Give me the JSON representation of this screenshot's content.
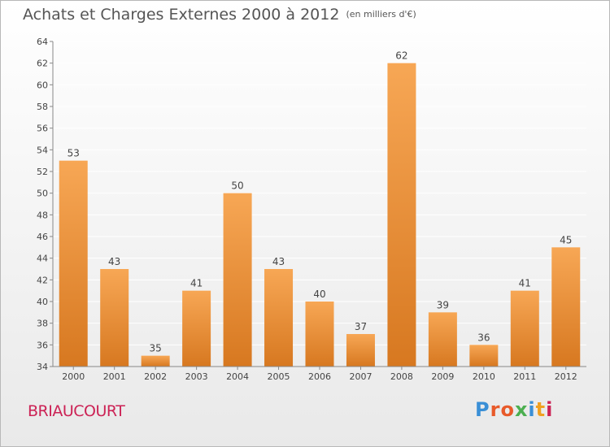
{
  "header": {
    "title": "Achats et Charges Externes 2000 à 2012",
    "subtitle": "(en milliers d'€)"
  },
  "footer": {
    "commune": "BRIAUCOURT",
    "logo_text": "Proxiti",
    "logo_colors": [
      "#3a8fd6",
      "#e85a2a",
      "#e85a2a",
      "#4caf50",
      "#3a8fd6",
      "#f0a020",
      "#cc2255"
    ]
  },
  "colors": {
    "bar_top": "#f7a755",
    "bar_bottom": "#d77820",
    "grid": "#ffffff",
    "axis": "#888888",
    "text": "#444444"
  },
  "chart_data": {
    "type": "bar",
    "title": "Achats et Charges Externes 2000 à 2012",
    "subtitle": "(en milliers d'€)",
    "categories": [
      "2000",
      "2001",
      "2002",
      "2003",
      "2004",
      "2005",
      "2006",
      "2007",
      "2008",
      "2009",
      "2010",
      "2011",
      "2012"
    ],
    "values": [
      53,
      43,
      35,
      41,
      50,
      43,
      40,
      37,
      62,
      39,
      36,
      41,
      45
    ],
    "ylim": [
      34,
      64
    ],
    "yticks": [
      34,
      36,
      38,
      40,
      42,
      44,
      46,
      48,
      50,
      52,
      54,
      56,
      58,
      60,
      62,
      64
    ],
    "grid": true,
    "data_labels": true
  }
}
